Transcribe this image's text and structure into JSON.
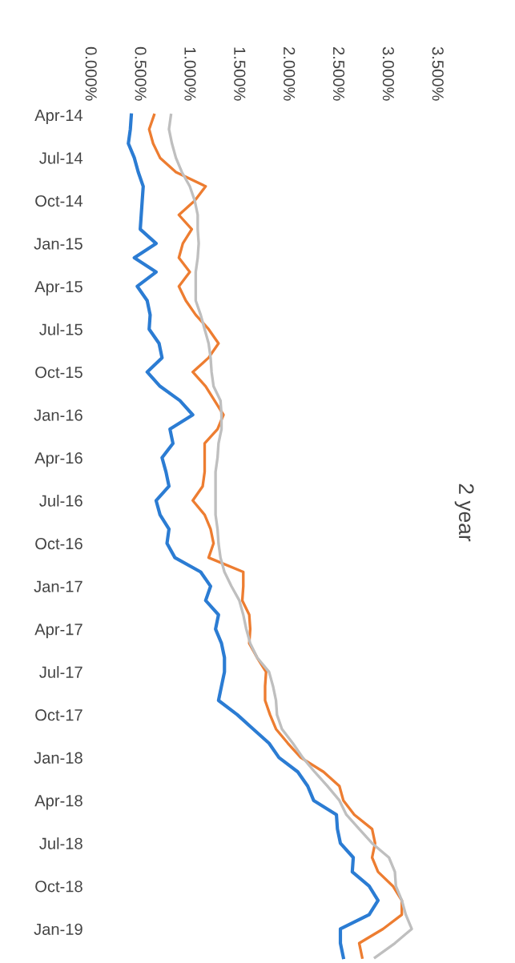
{
  "chart_data": {
    "type": "line",
    "title": "2 year",
    "orientation": "horizontal",
    "grid": false,
    "marker": "none",
    "line_style": "solid",
    "categories": [
      "Apr-14",
      null,
      null,
      "Jul-14",
      null,
      null,
      "Oct-14",
      null,
      null,
      "Jan-15",
      null,
      null,
      "Apr-15",
      null,
      null,
      "Jul-15",
      null,
      null,
      "Oct-15",
      null,
      null,
      "Jan-16",
      null,
      null,
      "Apr-16",
      null,
      null,
      "Jul-16",
      null,
      null,
      "Oct-16",
      null,
      null,
      "Jan-17",
      null,
      null,
      "Apr-17",
      null,
      null,
      "Jul-17",
      null,
      null,
      "Oct-17",
      null,
      null,
      "Jan-18",
      null,
      null,
      "Apr-18",
      null,
      null,
      "Jul-18",
      null,
      null,
      "Oct-18",
      null,
      null,
      "Jan-19",
      null,
      null
    ],
    "xlim": [
      0,
      3.5
    ],
    "xticks": [
      {
        "value": 0,
        "label": "0.000%"
      },
      {
        "value": 0.5,
        "label": "0.500%"
      },
      {
        "value": 1,
        "label": "1.000%"
      },
      {
        "value": 1.5,
        "label": "1.500%"
      },
      {
        "value": 2,
        "label": "2.000%"
      },
      {
        "value": 2.5,
        "label": "2.500%"
      },
      {
        "value": 3,
        "label": "3.000%"
      },
      {
        "value": 3.5,
        "label": "3.500%"
      }
    ],
    "series": [
      {
        "color": "#2b7cd3",
        "values": [
          0.42,
          0.41,
          0.39,
          0.45,
          0.49,
          0.54,
          0.53,
          0.52,
          0.51,
          0.67,
          0.45,
          0.67,
          0.48,
          0.58,
          0.61,
          0.6,
          0.7,
          0.73,
          0.58,
          0.71,
          0.91,
          1.04,
          0.81,
          0.84,
          0.73,
          0.77,
          0.8,
          0.67,
          0.71,
          0.8,
          0.78,
          0.86,
          1.12,
          1.22,
          1.17,
          1.3,
          1.27,
          1.33,
          1.36,
          1.36,
          1.33,
          1.3,
          1.49,
          1.65,
          1.81,
          1.91,
          2.1,
          2.2,
          2.26,
          2.49,
          2.5,
          2.53,
          2.66,
          2.65,
          2.82,
          2.91,
          2.82,
          2.53,
          2.53,
          2.56
        ]
      },
      {
        "color": "#ed7d31",
        "values": [
          0.65,
          0.6,
          0.64,
          0.71,
          0.87,
          1.17,
          1.06,
          0.9,
          1.03,
          0.94,
          0.9,
          1.01,
          0.9,
          0.97,
          1.07,
          1.2,
          1.3,
          1.2,
          1.04,
          1.17,
          1.26,
          1.35,
          1.29,
          1.16,
          1.16,
          1.16,
          1.14,
          1.04,
          1.16,
          1.22,
          1.25,
          1.2,
          1.55,
          1.55,
          1.54,
          1.61,
          1.62,
          1.61,
          1.69,
          1.78,
          1.77,
          1.77,
          1.82,
          1.88,
          2.0,
          2.13,
          2.36,
          2.52,
          2.56,
          2.67,
          2.85,
          2.88,
          2.85,
          2.91,
          3.06,
          3.15,
          3.15,
          2.96,
          2.72,
          2.75
        ]
      },
      {
        "color": "#bfbfbf",
        "values": [
          0.82,
          0.8,
          0.83,
          0.87,
          0.93,
          1.01,
          1.06,
          1.09,
          1.09,
          1.1,
          1.09,
          1.07,
          1.07,
          1.07,
          1.12,
          1.16,
          1.2,
          1.22,
          1.23,
          1.25,
          1.32,
          1.33,
          1.33,
          1.3,
          1.29,
          1.27,
          1.27,
          1.27,
          1.27,
          1.29,
          1.3,
          1.32,
          1.36,
          1.43,
          1.51,
          1.55,
          1.58,
          1.62,
          1.69,
          1.81,
          1.85,
          1.88,
          1.89,
          1.94,
          2.05,
          2.15,
          2.27,
          2.4,
          2.52,
          2.59,
          2.72,
          2.85,
          3.02,
          3.08,
          3.09,
          3.15,
          3.19,
          3.25,
          3.08,
          2.88
        ]
      }
    ]
  }
}
